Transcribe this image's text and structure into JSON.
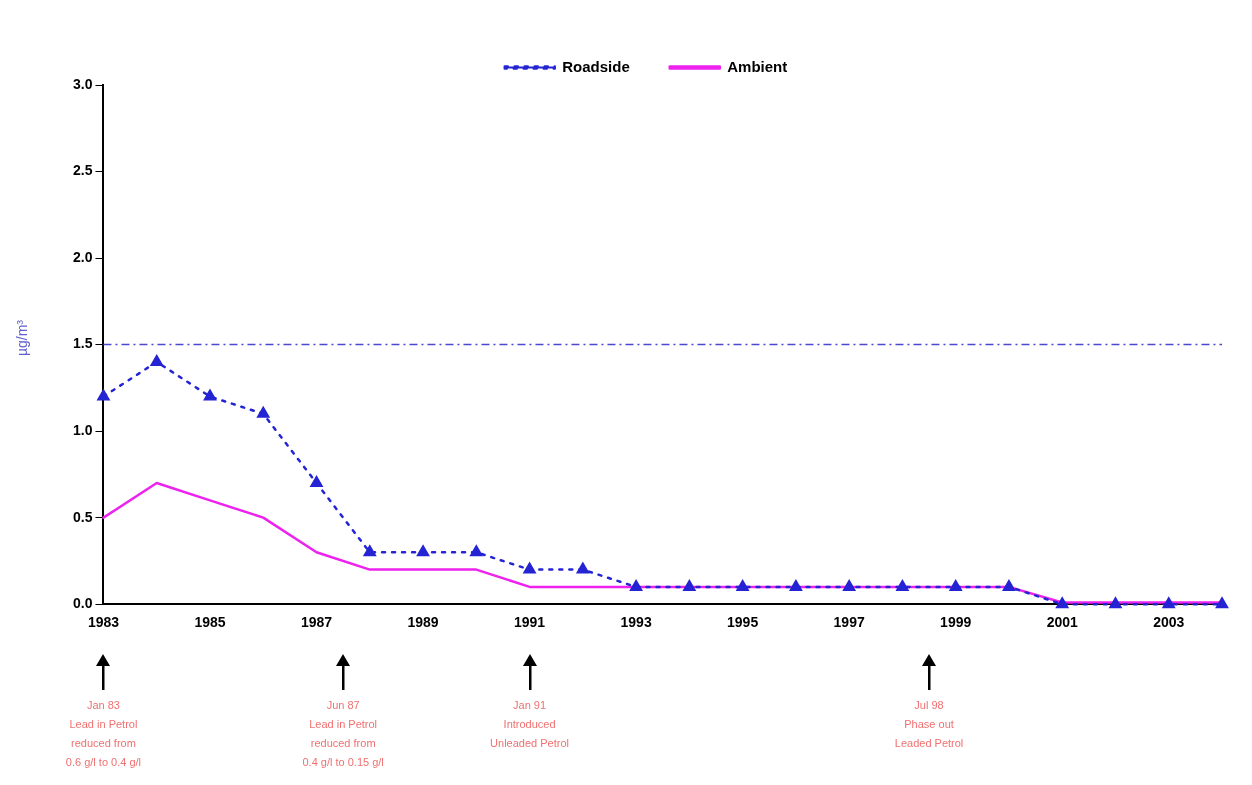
{
  "chart_data": {
    "type": "line",
    "categories": [
      "1983",
      null,
      "1985",
      null,
      "1987",
      null,
      "1989",
      null,
      "1991",
      null,
      "1993",
      null,
      "1995",
      null,
      "1997",
      null,
      "1999",
      null,
      "2001",
      null,
      "2003",
      null
    ],
    "series": [
      {
        "name": "Roadside",
        "color": "#2424d4",
        "values": [
          1.2,
          1.4,
          1.2,
          1.1,
          0.7,
          0.3,
          0.3,
          0.3,
          0.2,
          0.2,
          0.1,
          0.1,
          0.1,
          0.1,
          0.1,
          0.1,
          0.1,
          0.1,
          0,
          0,
          0,
          0
        ],
        "marker": "triangle",
        "line_style": "dotted"
      },
      {
        "name": "Ambient",
        "color": "#ee22ee",
        "values": [
          0.5,
          0.7,
          0.6,
          0.5,
          0.3,
          0.2,
          0.2,
          0.2,
          0.1,
          0.1,
          0.1,
          0.1,
          0.1,
          0.1,
          0.1,
          0.1,
          0.1,
          0.1,
          0.01,
          0.01,
          0.01,
          0.01
        ],
        "marker": "none",
        "line_style": "solid"
      }
    ],
    "ylabel": "µg/m³",
    "ylim": [
      0,
      3
    ],
    "yticks": [
      {
        "value": 0,
        "label": "0.0"
      },
      {
        "value": 0.5,
        "label": "0.5"
      },
      {
        "value": 1,
        "label": "1.0"
      },
      {
        "value": 1.5,
        "label": "1.5"
      },
      {
        "value": 2,
        "label": "2.0"
      },
      {
        "value": 2.5,
        "label": "2.5"
      },
      {
        "value": 3,
        "label": "3.0"
      }
    ],
    "ref_lines": [
      {
        "axis": "y",
        "value": 1.5,
        "color": "#4a4ad0",
        "line_style": "dashdot"
      }
    ],
    "grid": false,
    "legend": "top",
    "annotations": [
      "Jan 83\nLead in Petrol\nreduced from\n0.6 g/l to 0.4 g/l",
      "Jun 87\nLead in Petrol\nreduced from\n0.4 g/l to 0.15 g/l",
      "Jan 91\nIntroduced\nUnleaded Petrol",
      "Jul 98\nPhase out\nLeaded Petrol"
    ]
  }
}
